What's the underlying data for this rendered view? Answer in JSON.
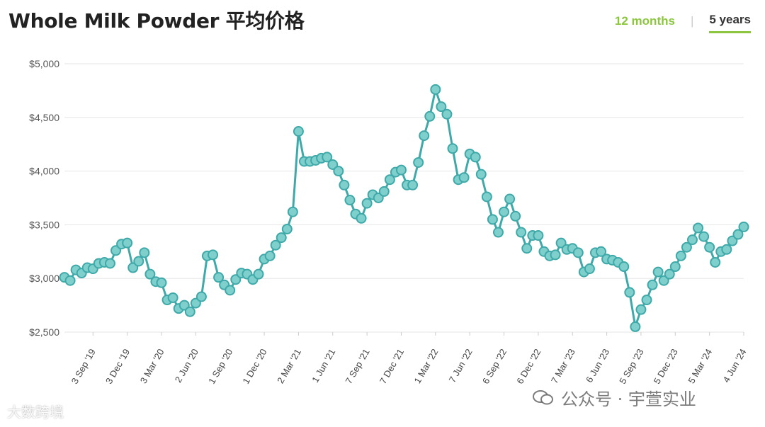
{
  "title": "Whole Milk Powder 平均价格",
  "tabs": [
    {
      "label": "12 months",
      "active": false
    },
    {
      "label": "5 years",
      "active": true
    }
  ],
  "watermarks": {
    "left": "大数跨境",
    "right": "公众号 · 宇萱实业"
  },
  "colors": {
    "line": "#3fa9a9",
    "marker_fill": "#7fd0cc",
    "accent": "#8cc63f"
  },
  "chart_data": {
    "type": "line",
    "ylim": [
      2500,
      5000
    ],
    "yticks": [
      "$2,500",
      "$3,000",
      "$3,500",
      "$4,000",
      "$4,500",
      "$5,000"
    ],
    "ytick_values": [
      2500,
      3000,
      3500,
      4000,
      4500,
      5000
    ],
    "xticks": [
      "3 Sep '19",
      "3 Dec '19",
      "3 Mar '20",
      "2 Jun '20",
      "1 Sep '20",
      "1 Dec '20",
      "2 Mar '21",
      "1 Jun '21",
      "7 Sep '21",
      "7 Dec '21",
      "1 Mar '22",
      "7 Jun '22",
      "6 Sep '22",
      "6 Dec '22",
      "7 Mar '23",
      "6 Jun '23",
      "5 Sep '23",
      "5 Dec '23",
      "5 Mar '24",
      "4 Jun '24"
    ],
    "xtick_index": [
      5,
      11,
      17,
      23,
      29,
      35,
      41,
      47,
      53,
      59,
      65,
      71,
      77,
      83,
      89,
      95,
      101,
      107,
      113,
      119
    ],
    "grid": true,
    "series": [
      {
        "values": [
          3010,
          2980,
          3080,
          3050,
          3100,
          3090,
          3140,
          3150,
          3140,
          3260,
          3320,
          3330,
          3100,
          3160,
          3240,
          3040,
          2970,
          2960,
          2800,
          2820,
          2720,
          2750,
          2690,
          2770,
          2830,
          3210,
          3220,
          3010,
          2940,
          2890,
          2990,
          3050,
          3040,
          2990,
          3040,
          3180,
          3210,
          3310,
          3380,
          3460,
          3620,
          4370,
          4090,
          4090,
          4100,
          4120,
          4130,
          4060,
          4000,
          3870,
          3730,
          3600,
          3560,
          3700,
          3780,
          3750,
          3810,
          3920,
          3990,
          4010,
          3870,
          3870,
          4080,
          4330,
          4510,
          4760,
          4600,
          4530,
          4210,
          3920,
          3940,
          4160,
          4130,
          3970,
          3760,
          3550,
          3430,
          3620,
          3740,
          3580,
          3430,
          3280,
          3400,
          3400,
          3250,
          3210,
          3220,
          3330,
          3270,
          3280,
          3240,
          3060,
          3090,
          3240,
          3250,
          3180,
          3170,
          3150,
          3110,
          2870,
          2550,
          2710,
          2800,
          2940,
          3060,
          2980,
          3040,
          3110,
          3210,
          3290,
          3360,
          3470,
          3390,
          3290,
          3150,
          3250,
          3270,
          3350,
          3410,
          3480
        ]
      }
    ]
  }
}
